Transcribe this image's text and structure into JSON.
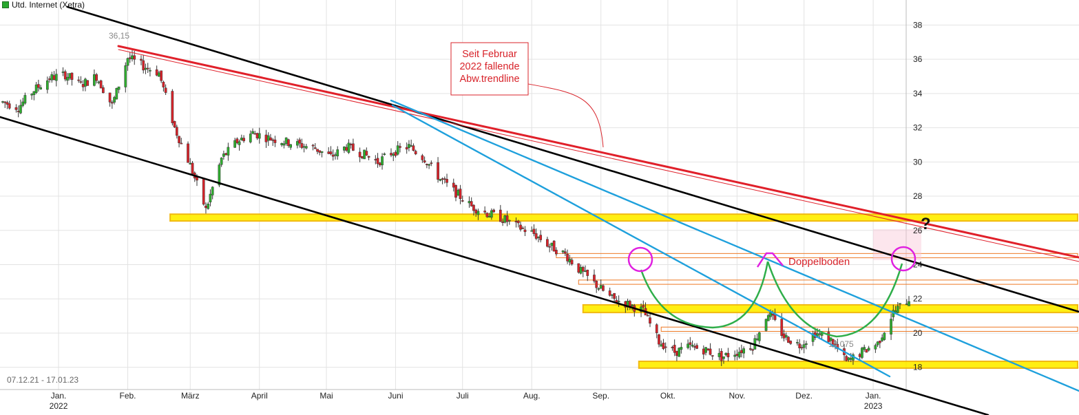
{
  "header": {
    "title": "Utd. Internet (Xetra)"
  },
  "footer": {
    "date_range": "07.12.21 - 17.01.23"
  },
  "colors": {
    "up_candle": "#2fae2f",
    "down_candle": "#d8232a",
    "support_zone": "#ffee00",
    "support_border": "#f0b400",
    "trend_red": "#e0202a",
    "trend_black": "#000000",
    "trend_blue": "#1ea0dc",
    "arc_green": "#2fae4a",
    "marker_magenta": "#e020e0",
    "box_orange": "#ee7722"
  },
  "chart_data": {
    "type": "candlestick",
    "y_axis": {
      "ticks": [
        18,
        20,
        22,
        24,
        26,
        28,
        30,
        32,
        34,
        36,
        38
      ],
      "range": [
        16.7,
        38.5
      ],
      "position": "right"
    },
    "x_axis": {
      "labels": [
        {
          "month": "Jan.",
          "year": "2022"
        },
        {
          "month": "Feb."
        },
        {
          "month": "März"
        },
        {
          "month": "April"
        },
        {
          "month": "Mai"
        },
        {
          "month": "Juni"
        },
        {
          "month": "Juli"
        },
        {
          "month": "Aug."
        },
        {
          "month": "Sep."
        },
        {
          "month": "Okt."
        },
        {
          "month": "Nov."
        },
        {
          "month": "Dez."
        },
        {
          "month": "Jan.",
          "year": "2023"
        }
      ]
    },
    "grid": true,
    "price_path": [
      [
        "2021-12-07",
        33.5
      ],
      [
        "2021-12-14",
        33.2
      ],
      [
        "2021-12-21",
        34.2
      ],
      [
        "2021-12-28",
        34.9
      ],
      [
        "2022-01-04",
        35.1
      ],
      [
        "2022-01-11",
        34.5
      ],
      [
        "2022-01-18",
        35.0
      ],
      [
        "2022-01-25",
        33.3
      ],
      [
        "2022-02-01",
        36.1
      ],
      [
        "2022-02-08",
        35.6
      ],
      [
        "2022-02-15",
        35.2
      ],
      [
        "2022-02-22",
        32.0
      ],
      [
        "2022-03-01",
        29.8
      ],
      [
        "2022-03-08",
        27.2
      ],
      [
        "2022-03-15",
        30.2
      ],
      [
        "2022-03-22",
        31.2
      ],
      [
        "2022-03-29",
        31.7
      ],
      [
        "2022-04-05",
        31.4
      ],
      [
        "2022-04-12",
        31.2
      ],
      [
        "2022-04-19",
        31.0
      ],
      [
        "2022-04-26",
        30.8
      ],
      [
        "2022-05-03",
        30.3
      ],
      [
        "2022-05-10",
        30.9
      ],
      [
        "2022-05-17",
        30.5
      ],
      [
        "2022-05-24",
        30.0
      ],
      [
        "2022-05-31",
        30.6
      ],
      [
        "2022-06-07",
        30.9
      ],
      [
        "2022-06-14",
        30.2
      ],
      [
        "2022-06-21",
        29.0
      ],
      [
        "2022-06-28",
        28.2
      ],
      [
        "2022-07-05",
        27.4
      ],
      [
        "2022-07-12",
        27.0
      ],
      [
        "2022-07-19",
        26.7
      ],
      [
        "2022-07-26",
        26.2
      ],
      [
        "2022-08-02",
        25.8
      ],
      [
        "2022-08-09",
        25.1
      ],
      [
        "2022-08-16",
        24.6
      ],
      [
        "2022-08-23",
        23.6
      ],
      [
        "2022-08-30",
        22.8
      ],
      [
        "2022-09-06",
        22.0
      ],
      [
        "2022-09-13",
        21.7
      ],
      [
        "2022-09-20",
        21.3
      ],
      [
        "2022-09-27",
        19.5
      ],
      [
        "2022-10-04",
        18.9
      ],
      [
        "2022-10-11",
        19.2
      ],
      [
        "2022-10-18",
        19.0
      ],
      [
        "2022-10-25",
        18.6
      ],
      [
        "2022-11-01",
        18.9
      ],
      [
        "2022-11-08",
        19.3
      ],
      [
        "2022-11-15",
        21.2
      ],
      [
        "2022-11-22",
        19.8
      ],
      [
        "2022-11-29",
        19.3
      ],
      [
        "2022-12-06",
        20.0
      ],
      [
        "2022-12-13",
        19.6
      ],
      [
        "2022-12-20",
        18.3
      ],
      [
        "2022-12-27",
        18.9
      ],
      [
        "2023-01-03",
        19.4
      ],
      [
        "2023-01-10",
        21.2
      ],
      [
        "2023-01-17",
        22.0
      ]
    ],
    "annotations": {
      "high_label": "36,15",
      "low_label": "18,075",
      "trendline_note_lines": [
        "Seit Februar",
        "2022 fallende",
        "Abw.trendline"
      ],
      "pattern_label": "Doppelboden",
      "question_mark": "?"
    },
    "support_zones": [
      {
        "from": "2022-02-20",
        "low": 26.55,
        "high": 26.95
      },
      {
        "from": "2022-08-24",
        "low": 21.2,
        "high": 21.65
      },
      {
        "from": "2022-09-18",
        "low": 17.95,
        "high": 18.35
      }
    ],
    "resistance_boxes": [
      {
        "from": "2022-08-12",
        "low": 24.4,
        "high": 24.65
      },
      {
        "from": "2022-08-22",
        "low": 22.85,
        "high": 23.1
      },
      {
        "from": "2022-09-28",
        "low": 20.1,
        "high": 20.35
      }
    ]
  }
}
